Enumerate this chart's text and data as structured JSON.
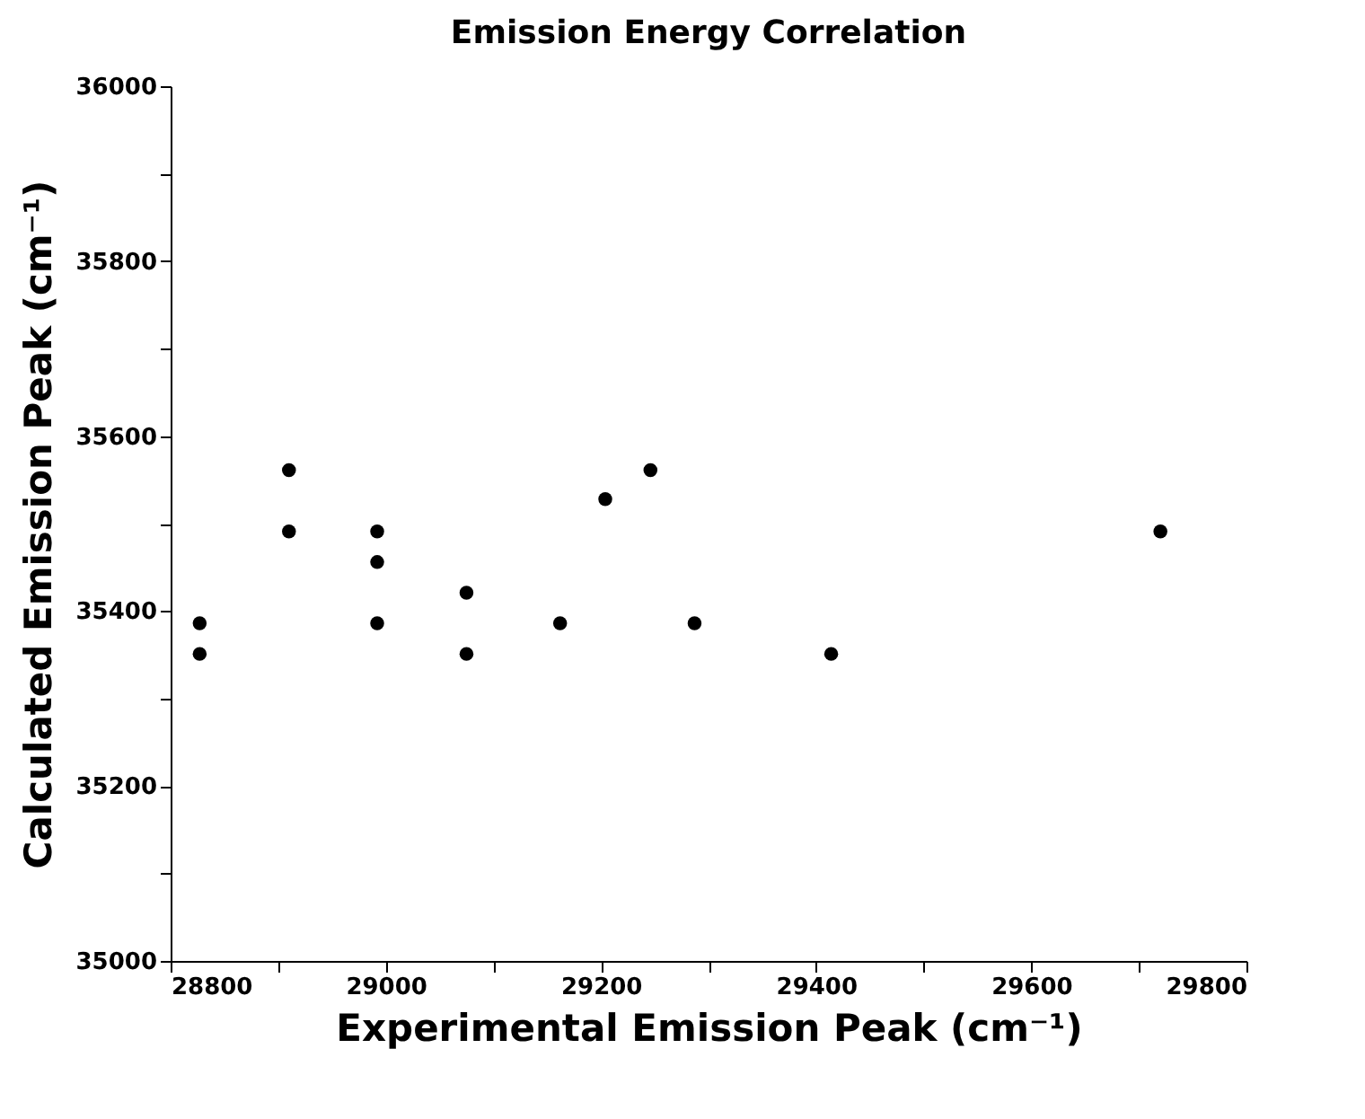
{
  "chart_data": {
    "type": "scatter",
    "title": "Emission Energy Correlation",
    "xlabel": "Experimental Emission Peak (cm⁻¹)",
    "ylabel": "Calculated Emission Peak (cm⁻¹)",
    "x": [
      28827,
      28827,
      28910,
      28910,
      28992,
      28992,
      28992,
      29075,
      29075,
      29162,
      29204,
      29246,
      29287,
      29414,
      29720
    ],
    "series": [
      {
        "color": "#000000",
        "values": [
          35386,
          35351,
          35561,
          35491,
          35491,
          35456,
          35386,
          35421,
          35351,
          35386,
          35528,
          35561,
          35386,
          35351,
          35491
        ]
      }
    ],
    "xlim": [
      28800,
      29800
    ],
    "ylim": [
      35000,
      36000
    ],
    "xticks": [
      28800,
      {
        "value": 28900,
        "label": null
      },
      29000,
      {
        "value": 29100,
        "label": null
      },
      29200,
      {
        "value": 29300,
        "label": null
      },
      29400,
      {
        "value": 29500,
        "label": null
      },
      29600,
      {
        "value": 29700,
        "label": null
      },
      29800
    ],
    "yticks": [
      35000,
      {
        "value": 35100,
        "label": null
      },
      35200,
      {
        "value": 35300,
        "label": null
      },
      35400,
      {
        "value": 35500,
        "label": null
      },
      35600,
      {
        "value": 35700,
        "label": null
      },
      35800,
      {
        "value": 35900,
        "label": null
      },
      36000
    ],
    "grid": false,
    "marker": "circle"
  }
}
